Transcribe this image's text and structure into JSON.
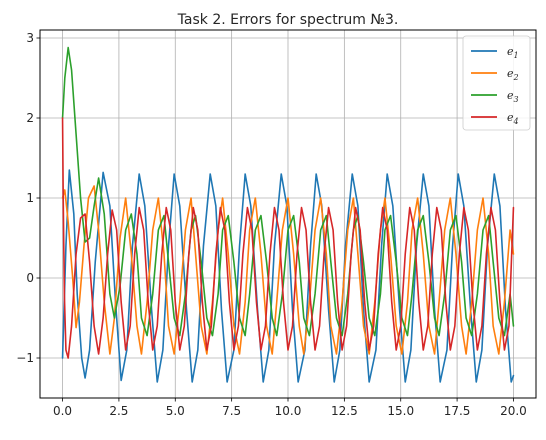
{
  "chart_data": {
    "type": "line",
    "title": "Task 2. Errors for spectrum №3.",
    "xlabel": "",
    "ylabel": "",
    "xlim": [
      -1.0,
      21.0
    ],
    "ylim": [
      -1.5,
      3.1
    ],
    "x_ticks": [
      0.0,
      2.5,
      5.0,
      7.5,
      10.0,
      12.5,
      15.0,
      17.5,
      20.0
    ],
    "x_tick_labels": [
      "0.0",
      "2.5",
      "5.0",
      "7.5",
      "10.0",
      "12.5",
      "15.0",
      "17.5",
      "20.0"
    ],
    "y_ticks": [
      -1,
      0,
      1,
      2,
      3
    ],
    "y_tick_labels": [
      "−1",
      "0",
      "1",
      "2",
      "3"
    ],
    "grid": true,
    "legend": {
      "placement": "top-right",
      "entries": [
        {
          "base": "e",
          "sub": "1"
        },
        {
          "base": "e",
          "sub": "2"
        },
        {
          "base": "e",
          "sub": "3"
        },
        {
          "base": "e",
          "sub": "4"
        }
      ]
    },
    "series": [
      {
        "color": "#1f77b4",
        "x": [
          0.0,
          0.15,
          0.3,
          0.5,
          0.65,
          0.85,
          1.0,
          1.2,
          1.45,
          1.8,
          2.1,
          2.35,
          2.6,
          2.85,
          3.1,
          3.4,
          3.65,
          3.95,
          4.2,
          4.45,
          4.7,
          4.95,
          5.2,
          5.5,
          5.75,
          6.0,
          6.25,
          6.55,
          6.8,
          7.05,
          7.3,
          7.6,
          7.85,
          8.1,
          8.35,
          8.65,
          8.9,
          9.15,
          9.4,
          9.7,
          9.95,
          10.2,
          10.45,
          10.75,
          11.0,
          11.25,
          11.5,
          11.8,
          12.05,
          12.3,
          12.55,
          12.85,
          13.1,
          13.35,
          13.6,
          13.9,
          14.15,
          14.4,
          14.65,
          14.95,
          15.2,
          15.45,
          15.7,
          16.0,
          16.25,
          16.5,
          16.75,
          17.05,
          17.3,
          17.55,
          17.8,
          18.1,
          18.35,
          18.6,
          18.85,
          19.15,
          19.4,
          19.65,
          19.9,
          20.0
        ],
        "y": [
          -1.0,
          0.4,
          1.35,
          0.8,
          -0.2,
          -1.0,
          -1.25,
          -0.9,
          0.2,
          1.32,
          0.9,
          -0.3,
          -1.28,
          -0.9,
          0.4,
          1.3,
          0.9,
          -0.4,
          -1.3,
          -0.9,
          0.4,
          1.3,
          0.9,
          -0.4,
          -1.3,
          -0.9,
          0.4,
          1.3,
          0.9,
          -0.4,
          -1.3,
          -0.9,
          0.4,
          1.3,
          0.9,
          -0.4,
          -1.3,
          -0.9,
          0.4,
          1.3,
          0.9,
          -0.4,
          -1.3,
          -0.9,
          0.4,
          1.3,
          0.9,
          -0.4,
          -1.3,
          -0.9,
          0.4,
          1.3,
          0.9,
          -0.4,
          -1.3,
          -0.9,
          0.4,
          1.3,
          0.9,
          -0.4,
          -1.3,
          -0.9,
          0.4,
          1.3,
          0.9,
          -0.4,
          -1.3,
          -0.9,
          0.4,
          1.3,
          0.9,
          -0.4,
          -1.3,
          -0.9,
          0.4,
          1.3,
          0.9,
          -0.4,
          -1.3,
          -1.22
        ]
      },
      {
        "color": "#ff7f0e",
        "x": [
          0.0,
          0.1,
          0.25,
          0.45,
          0.6,
          0.75,
          0.95,
          1.15,
          1.4,
          1.6,
          1.85,
          2.1,
          2.3,
          2.55,
          2.8,
          3.05,
          3.3,
          3.5,
          3.75,
          4.0,
          4.25,
          4.5,
          4.7,
          4.95,
          5.2,
          5.45,
          5.7,
          5.9,
          6.15,
          6.4,
          6.65,
          6.9,
          7.1,
          7.35,
          7.6,
          7.85,
          8.1,
          8.3,
          8.55,
          8.8,
          9.05,
          9.3,
          9.5,
          9.75,
          10.0,
          10.25,
          10.5,
          10.7,
          10.95,
          11.2,
          11.45,
          11.7,
          11.9,
          12.15,
          12.4,
          12.65,
          12.9,
          13.1,
          13.35,
          13.6,
          13.85,
          14.1,
          14.3,
          14.55,
          14.8,
          15.05,
          15.3,
          15.5,
          15.75,
          16.0,
          16.25,
          16.5,
          16.7,
          16.95,
          17.2,
          17.45,
          17.7,
          17.9,
          18.15,
          18.4,
          18.65,
          18.9,
          19.1,
          19.35,
          19.6,
          19.85,
          20.0
        ],
        "y": [
          1.0,
          1.1,
          0.7,
          0.0,
          -0.62,
          -0.3,
          0.4,
          1.0,
          1.15,
          0.6,
          -0.3,
          -0.95,
          -0.5,
          0.5,
          1.0,
          0.3,
          -0.6,
          -0.95,
          -0.3,
          0.6,
          1.0,
          0.3,
          -0.6,
          -0.95,
          -0.3,
          0.6,
          1.0,
          0.3,
          -0.6,
          -0.95,
          -0.3,
          0.6,
          1.0,
          0.3,
          -0.6,
          -0.95,
          -0.3,
          0.6,
          1.0,
          0.3,
          -0.6,
          -0.95,
          -0.3,
          0.6,
          1.0,
          0.3,
          -0.6,
          -0.95,
          -0.3,
          0.6,
          1.0,
          0.3,
          -0.6,
          -0.95,
          -0.3,
          0.6,
          1.0,
          0.3,
          -0.6,
          -0.95,
          -0.3,
          0.6,
          1.0,
          0.3,
          -0.6,
          -0.95,
          -0.3,
          0.6,
          1.0,
          0.3,
          -0.6,
          -0.95,
          -0.3,
          0.6,
          1.0,
          0.3,
          -0.6,
          -0.95,
          -0.3,
          0.6,
          1.0,
          0.3,
          -0.6,
          -0.95,
          -0.3,
          0.6,
          0.3
        ]
      },
      {
        "color": "#2ca02c",
        "x": [
          0.0,
          0.1,
          0.25,
          0.4,
          0.6,
          0.8,
          1.0,
          1.2,
          1.4,
          1.6,
          1.85,
          2.1,
          2.3,
          2.55,
          2.8,
          3.05,
          3.3,
          3.5,
          3.75,
          4.0,
          4.25,
          4.5,
          4.7,
          4.95,
          5.2,
          5.45,
          5.7,
          5.9,
          6.15,
          6.4,
          6.65,
          6.9,
          7.1,
          7.35,
          7.6,
          7.85,
          8.1,
          8.3,
          8.55,
          8.8,
          9.05,
          9.3,
          9.5,
          9.75,
          10.0,
          10.25,
          10.5,
          10.7,
          10.95,
          11.2,
          11.45,
          11.7,
          11.9,
          12.15,
          12.4,
          12.65,
          12.9,
          13.1,
          13.35,
          13.6,
          13.85,
          14.1,
          14.3,
          14.55,
          14.8,
          15.05,
          15.3,
          15.5,
          15.75,
          16.0,
          16.25,
          16.5,
          16.7,
          16.95,
          17.2,
          17.45,
          17.7,
          17.9,
          18.15,
          18.4,
          18.65,
          18.9,
          19.1,
          19.35,
          19.6,
          19.85,
          20.0
        ],
        "y": [
          2.0,
          2.5,
          2.88,
          2.6,
          1.8,
          1.0,
          0.45,
          0.5,
          0.9,
          1.25,
          0.8,
          -0.2,
          -0.5,
          -0.1,
          0.6,
          0.8,
          0.3,
          -0.5,
          -0.72,
          -0.2,
          0.6,
          0.78,
          0.2,
          -0.5,
          -0.72,
          -0.2,
          0.6,
          0.78,
          0.2,
          -0.5,
          -0.72,
          -0.2,
          0.6,
          0.78,
          0.2,
          -0.5,
          -0.72,
          -0.2,
          0.6,
          0.78,
          0.2,
          -0.5,
          -0.72,
          -0.2,
          0.6,
          0.78,
          0.2,
          -0.5,
          -0.72,
          -0.2,
          0.6,
          0.78,
          0.2,
          -0.5,
          -0.72,
          -0.2,
          0.6,
          0.78,
          0.2,
          -0.5,
          -0.72,
          -0.2,
          0.6,
          0.78,
          0.2,
          -0.5,
          -0.72,
          -0.2,
          0.6,
          0.78,
          0.2,
          -0.5,
          -0.72,
          -0.2,
          0.6,
          0.78,
          0.2,
          -0.5,
          -0.72,
          -0.2,
          0.6,
          0.78,
          0.2,
          -0.5,
          -0.72,
          -0.2,
          -0.6
        ]
      },
      {
        "color": "#d62728",
        "x": [
          0.0,
          0.03,
          0.08,
          0.15,
          0.25,
          0.4,
          0.6,
          0.8,
          1.0,
          1.2,
          1.4,
          1.6,
          1.8,
          2.0,
          2.2,
          2.4,
          2.6,
          2.8,
          3.0,
          3.2,
          3.4,
          3.6,
          3.8,
          4.0,
          4.2,
          4.4,
          4.6,
          4.8,
          5.0,
          5.2,
          5.4,
          5.6,
          5.8,
          6.0,
          6.2,
          6.4,
          6.6,
          6.8,
          7.0,
          7.2,
          7.4,
          7.6,
          7.8,
          8.0,
          8.2,
          8.4,
          8.6,
          8.8,
          9.0,
          9.2,
          9.4,
          9.6,
          9.8,
          10.0,
          10.2,
          10.4,
          10.6,
          10.8,
          11.0,
          11.2,
          11.4,
          11.6,
          11.8,
          12.0,
          12.2,
          12.4,
          12.6,
          12.8,
          13.0,
          13.2,
          13.4,
          13.6,
          13.8,
          14.0,
          14.2,
          14.4,
          14.6,
          14.8,
          15.0,
          15.2,
          15.4,
          15.6,
          15.8,
          16.0,
          16.2,
          16.4,
          16.6,
          16.8,
          17.0,
          17.2,
          17.4,
          17.6,
          17.8,
          18.0,
          18.2,
          18.4,
          18.6,
          18.8,
          19.0,
          19.2,
          19.4,
          19.6,
          19.8,
          20.0
        ],
        "y": [
          2.0,
          1.0,
          -0.2,
          -0.9,
          -1.0,
          -0.6,
          0.3,
          0.75,
          0.8,
          0.2,
          -0.6,
          -0.95,
          -0.5,
          0.3,
          0.85,
          0.6,
          -0.3,
          -0.9,
          -0.6,
          0.3,
          0.88,
          0.6,
          -0.3,
          -0.9,
          -0.6,
          0.3,
          0.88,
          0.6,
          -0.3,
          -0.9,
          -0.6,
          0.3,
          0.88,
          0.6,
          -0.3,
          -0.9,
          -0.6,
          0.3,
          0.88,
          0.6,
          -0.3,
          -0.9,
          -0.6,
          0.3,
          0.88,
          0.6,
          -0.3,
          -0.9,
          -0.6,
          0.3,
          0.88,
          0.6,
          -0.3,
          -0.9,
          -0.6,
          0.3,
          0.88,
          0.6,
          -0.3,
          -0.9,
          -0.6,
          0.3,
          0.88,
          0.6,
          -0.3,
          -0.9,
          -0.6,
          0.3,
          0.88,
          0.6,
          -0.3,
          -0.9,
          -0.6,
          0.3,
          0.88,
          0.6,
          -0.3,
          -0.9,
          -0.6,
          0.3,
          0.88,
          0.6,
          -0.3,
          -0.9,
          -0.6,
          0.3,
          0.88,
          0.6,
          -0.3,
          -0.9,
          -0.6,
          0.3,
          0.88,
          0.6,
          -0.3,
          -0.9,
          -0.6,
          0.3,
          0.88,
          0.6,
          -0.3,
          -0.9,
          -0.6,
          0.88
        ]
      }
    ]
  }
}
